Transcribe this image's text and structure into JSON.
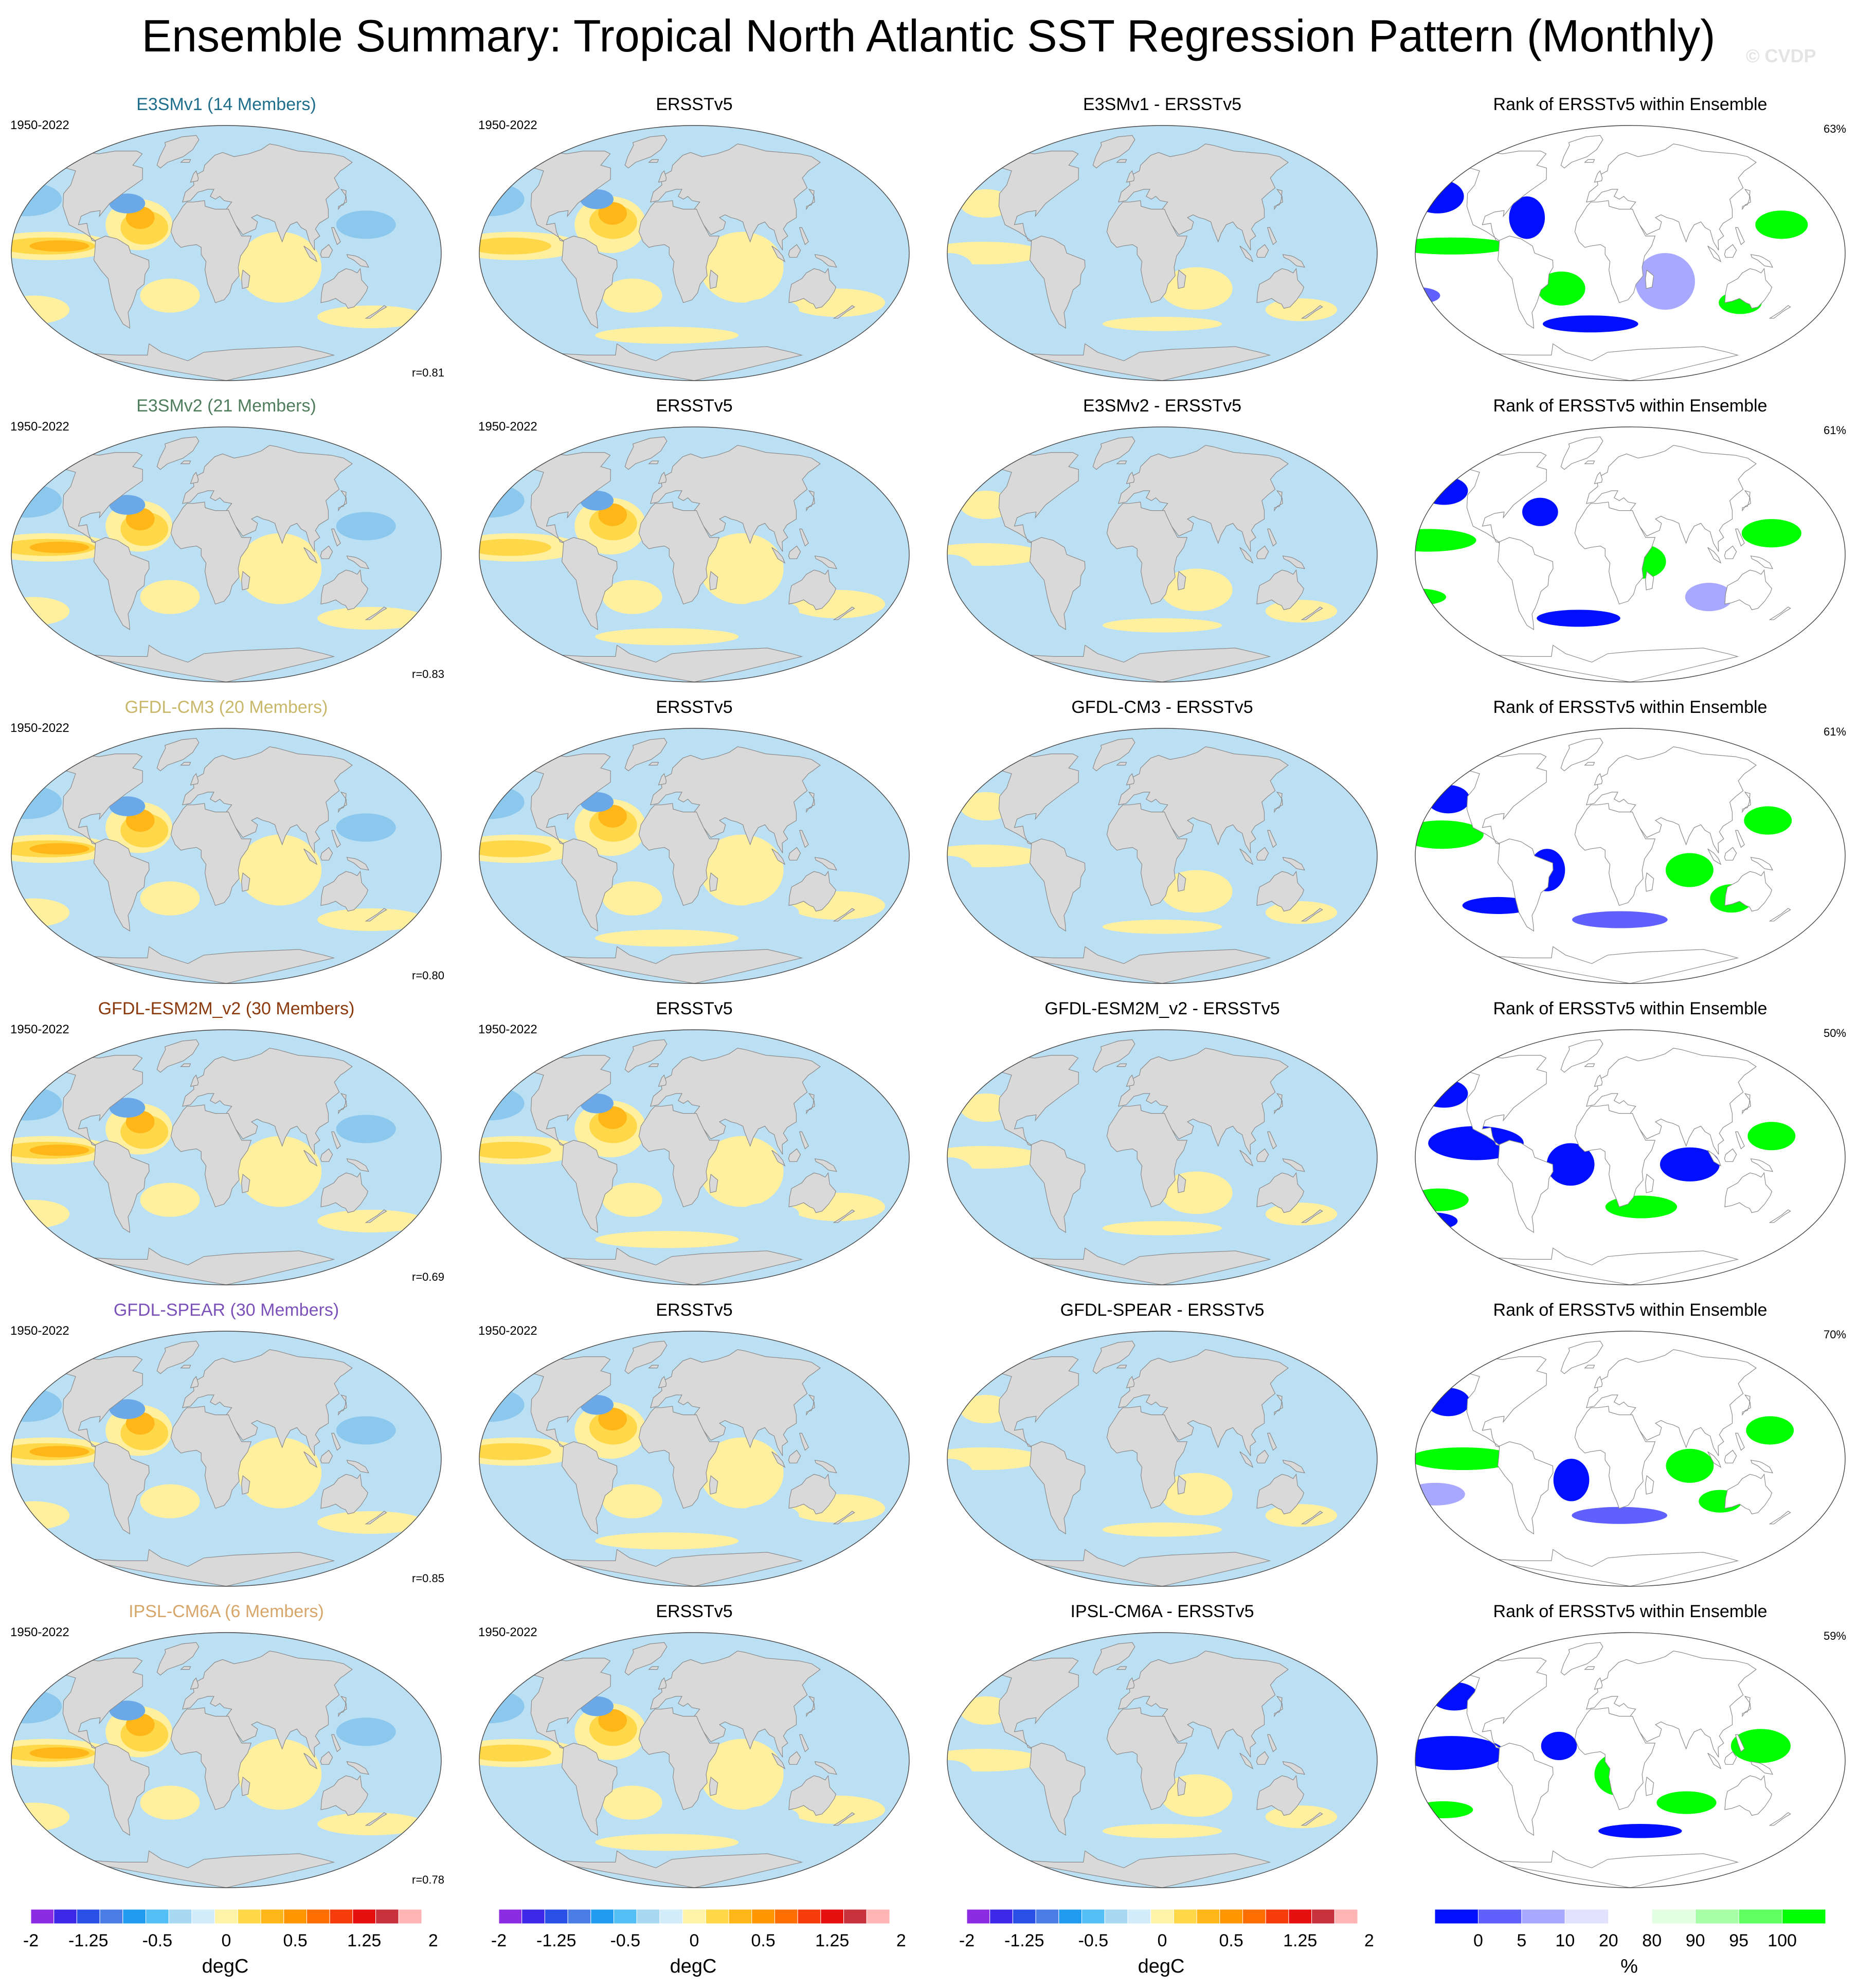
{
  "title": "Ensemble Summary: Tropical North Atlantic SST Regression Pattern (Monthly)",
  "watermark": "© CVDP",
  "rows": [
    {
      "model": "E3SMv1 (14 Members)",
      "model_color": "#1e6e8c",
      "period": "1950-2022",
      "corr": "r=0.81",
      "obs": "ERSSTv5",
      "obs_period": "1950-2022",
      "diff": "E3SMv1 - ERSSTv5",
      "rank": "Rank of ERSSTv5 within Ensemble",
      "rank_pct": "63%"
    },
    {
      "model": "E3SMv2 (21 Members)",
      "model_color": "#4f7d5e",
      "period": "1950-2022",
      "corr": "r=0.83",
      "obs": "ERSSTv5",
      "obs_period": "1950-2022",
      "diff": "E3SMv2 - ERSSTv5",
      "rank": "Rank of ERSSTv5 within Ensemble",
      "rank_pct": "61%"
    },
    {
      "model": "GFDL-CM3 (20 Members)",
      "model_color": "#c9b86a",
      "period": "1950-2022",
      "corr": "r=0.80",
      "obs": "ERSSTv5",
      "obs_period": "",
      "diff": "GFDL-CM3 - ERSSTv5",
      "rank": "Rank of ERSSTv5 within Ensemble",
      "rank_pct": "61%"
    },
    {
      "model": "GFDL-ESM2M_v2 (30 Members)",
      "model_color": "#8b3a0e",
      "period": "1950-2022",
      "corr": "r=0.69",
      "obs": "ERSSTv5",
      "obs_period": "1950-2022",
      "diff": "GFDL-ESM2M_v2 - ERSSTv5",
      "rank": "Rank of ERSSTv5 within Ensemble",
      "rank_pct": "50%"
    },
    {
      "model": "GFDL-SPEAR (30 Members)",
      "model_color": "#7b52b8",
      "period": "1950-2022",
      "corr": "r=0.85",
      "obs": "ERSSTv5",
      "obs_period": "1950-2022",
      "diff": "GFDL-SPEAR - ERSSTv5",
      "rank": "Rank of ERSSTv5 within Ensemble",
      "rank_pct": "70%"
    },
    {
      "model": "IPSL-CM6A (6 Members)",
      "model_color": "#d6a66a",
      "period": "1950-2022",
      "corr": "r=0.78",
      "obs": "ERSSTv5",
      "obs_period": "1950-2022",
      "diff": "IPSL-CM6A - ERSSTv5",
      "rank": "Rank of ERSSTv5 within Ensemble",
      "rank_pct": "59%"
    }
  ],
  "colorbars": {
    "degc": {
      "colors": [
        "#8b2be2",
        "#3c28e6",
        "#2850e6",
        "#4a7de6",
        "#1f9cf0",
        "#53bff5",
        "#a9d8f2",
        "#d2ecf9",
        "#fff3a8",
        "#ffd84a",
        "#ffb619",
        "#ff9600",
        "#ff6e00",
        "#f53c0a",
        "#e60f0f",
        "#c8323c",
        "#ffb4b4"
      ],
      "labels": [
        "-2",
        "-1.25",
        "-0.5",
        "0",
        "0.5",
        "1.25",
        "2"
      ],
      "label_bounds": [
        0.5,
        3,
        6,
        9,
        12,
        15,
        18
      ],
      "unit": "degC"
    },
    "rank": {
      "colors": [
        "#0010ff",
        "#6060ff",
        "#a8a8ff",
        "#e2e2ff",
        "#ffffff",
        "#e2ffe2",
        "#a8ffa8",
        "#60ff60",
        "#00ff00"
      ],
      "labels": [
        "0",
        "5",
        "10",
        "20",
        "80",
        "90",
        "95",
        "100"
      ],
      "unit": "%"
    }
  },
  "legend_colors": {
    "land": "#d9d9d9",
    "coast": "#8a8a8a",
    "ocean_light_blue": "#bce0f3",
    "ocean_yellow": "#fff0a0"
  }
}
